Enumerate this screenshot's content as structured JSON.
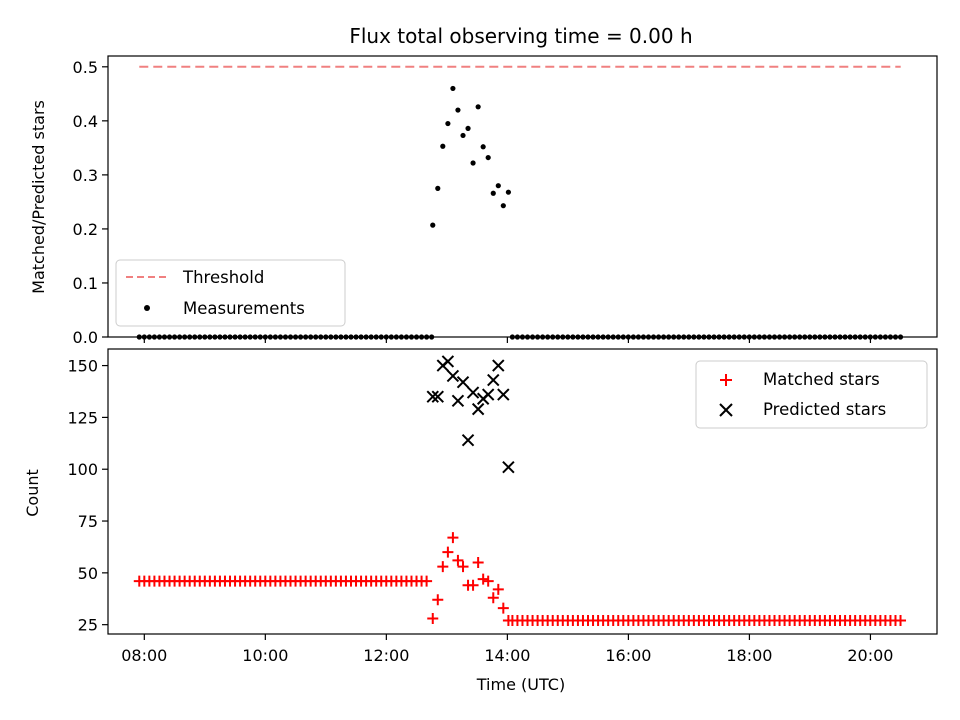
{
  "chart_data": {
    "title": "Flux total observing time = 0.00 h",
    "xlabel": "Time (UTC)",
    "x_ticks": [
      "08:00",
      "10:00",
      "12:00",
      "14:00",
      "16:00",
      "18:00",
      "20:00"
    ],
    "x_tick_hours": [
      8,
      10,
      12,
      14,
      16,
      18,
      20
    ],
    "xlim_hours": [
      7.4,
      21.1
    ],
    "panels": [
      {
        "type": "scatter",
        "ylabel": "Matched/Predicted stars",
        "ylim": [
          0,
          0.52
        ],
        "y_ticks": [
          0.0,
          0.1,
          0.2,
          0.3,
          0.4,
          0.5
        ],
        "y_tick_labels": [
          "0.0",
          "0.1",
          "0.2",
          "0.3",
          "0.4",
          "0.5"
        ],
        "legend_position": "lower left",
        "threshold": {
          "name": "Threshold",
          "value": 0.5,
          "color": "#f08080",
          "style": "dashed"
        },
        "series": [
          {
            "name": "Measurements",
            "color": "#000000",
            "marker": "dot",
            "baseline": {
              "start": 7.917,
              "end": 12.75,
              "step": 0.0833,
              "value": 0.0
            },
            "baseline2": {
              "start": 14.083,
              "end": 20.5,
              "step": 0.0833,
              "value": 0.0
            },
            "x": [
              12.767,
              12.85,
              12.933,
              13.017,
              13.1,
              13.183,
              13.267,
              13.35,
              13.433,
              13.517,
              13.6,
              13.683,
              13.767,
              13.85,
              13.933,
              14.017
            ],
            "y": [
              0.207,
              0.275,
              0.353,
              0.395,
              0.46,
              0.42,
              0.373,
              0.386,
              0.322,
              0.426,
              0.352,
              0.332,
              0.266,
              0.28,
              0.243,
              0.268
            ]
          }
        ]
      },
      {
        "type": "scatter",
        "ylabel": "Count",
        "ylim": [
          20.5,
          158
        ],
        "y_ticks": [
          25,
          50,
          75,
          100,
          125,
          150
        ],
        "y_tick_labels": [
          "25",
          "50",
          "75",
          "100",
          "125",
          "150"
        ],
        "legend_position": "upper right",
        "series": [
          {
            "name": "Matched stars",
            "color": "#ff0000",
            "marker": "plus",
            "baseline": {
              "start": 7.917,
              "end": 12.7,
              "step": 0.0833,
              "value": 46
            },
            "baseline2": {
              "start": 14.083,
              "end": 20.5,
              "step": 0.0833,
              "value": 27
            },
            "x": [
              12.767,
              12.85,
              12.933,
              13.017,
              13.1,
              13.183,
              13.267,
              13.35,
              13.433,
              13.517,
              13.6,
              13.683,
              13.767,
              13.85,
              13.933,
              14.017
            ],
            "y": [
              28,
              37,
              53,
              60,
              67,
              56,
              53,
              44,
              44,
              55,
              47,
              46,
              38,
              42,
              33,
              27
            ]
          },
          {
            "name": "Predicted stars",
            "color": "#000000",
            "marker": "x",
            "x": [
              12.767,
              12.85,
              12.933,
              13.017,
              13.1,
              13.183,
              13.267,
              13.35,
              13.433,
              13.517,
              13.6,
              13.683,
              13.767,
              13.85,
              13.933,
              14.017
            ],
            "y": [
              135,
              135,
              150,
              152,
              145,
              133,
              142,
              114,
              137,
              129,
              134,
              136,
              143,
              150,
              136,
              101
            ]
          }
        ]
      }
    ]
  }
}
